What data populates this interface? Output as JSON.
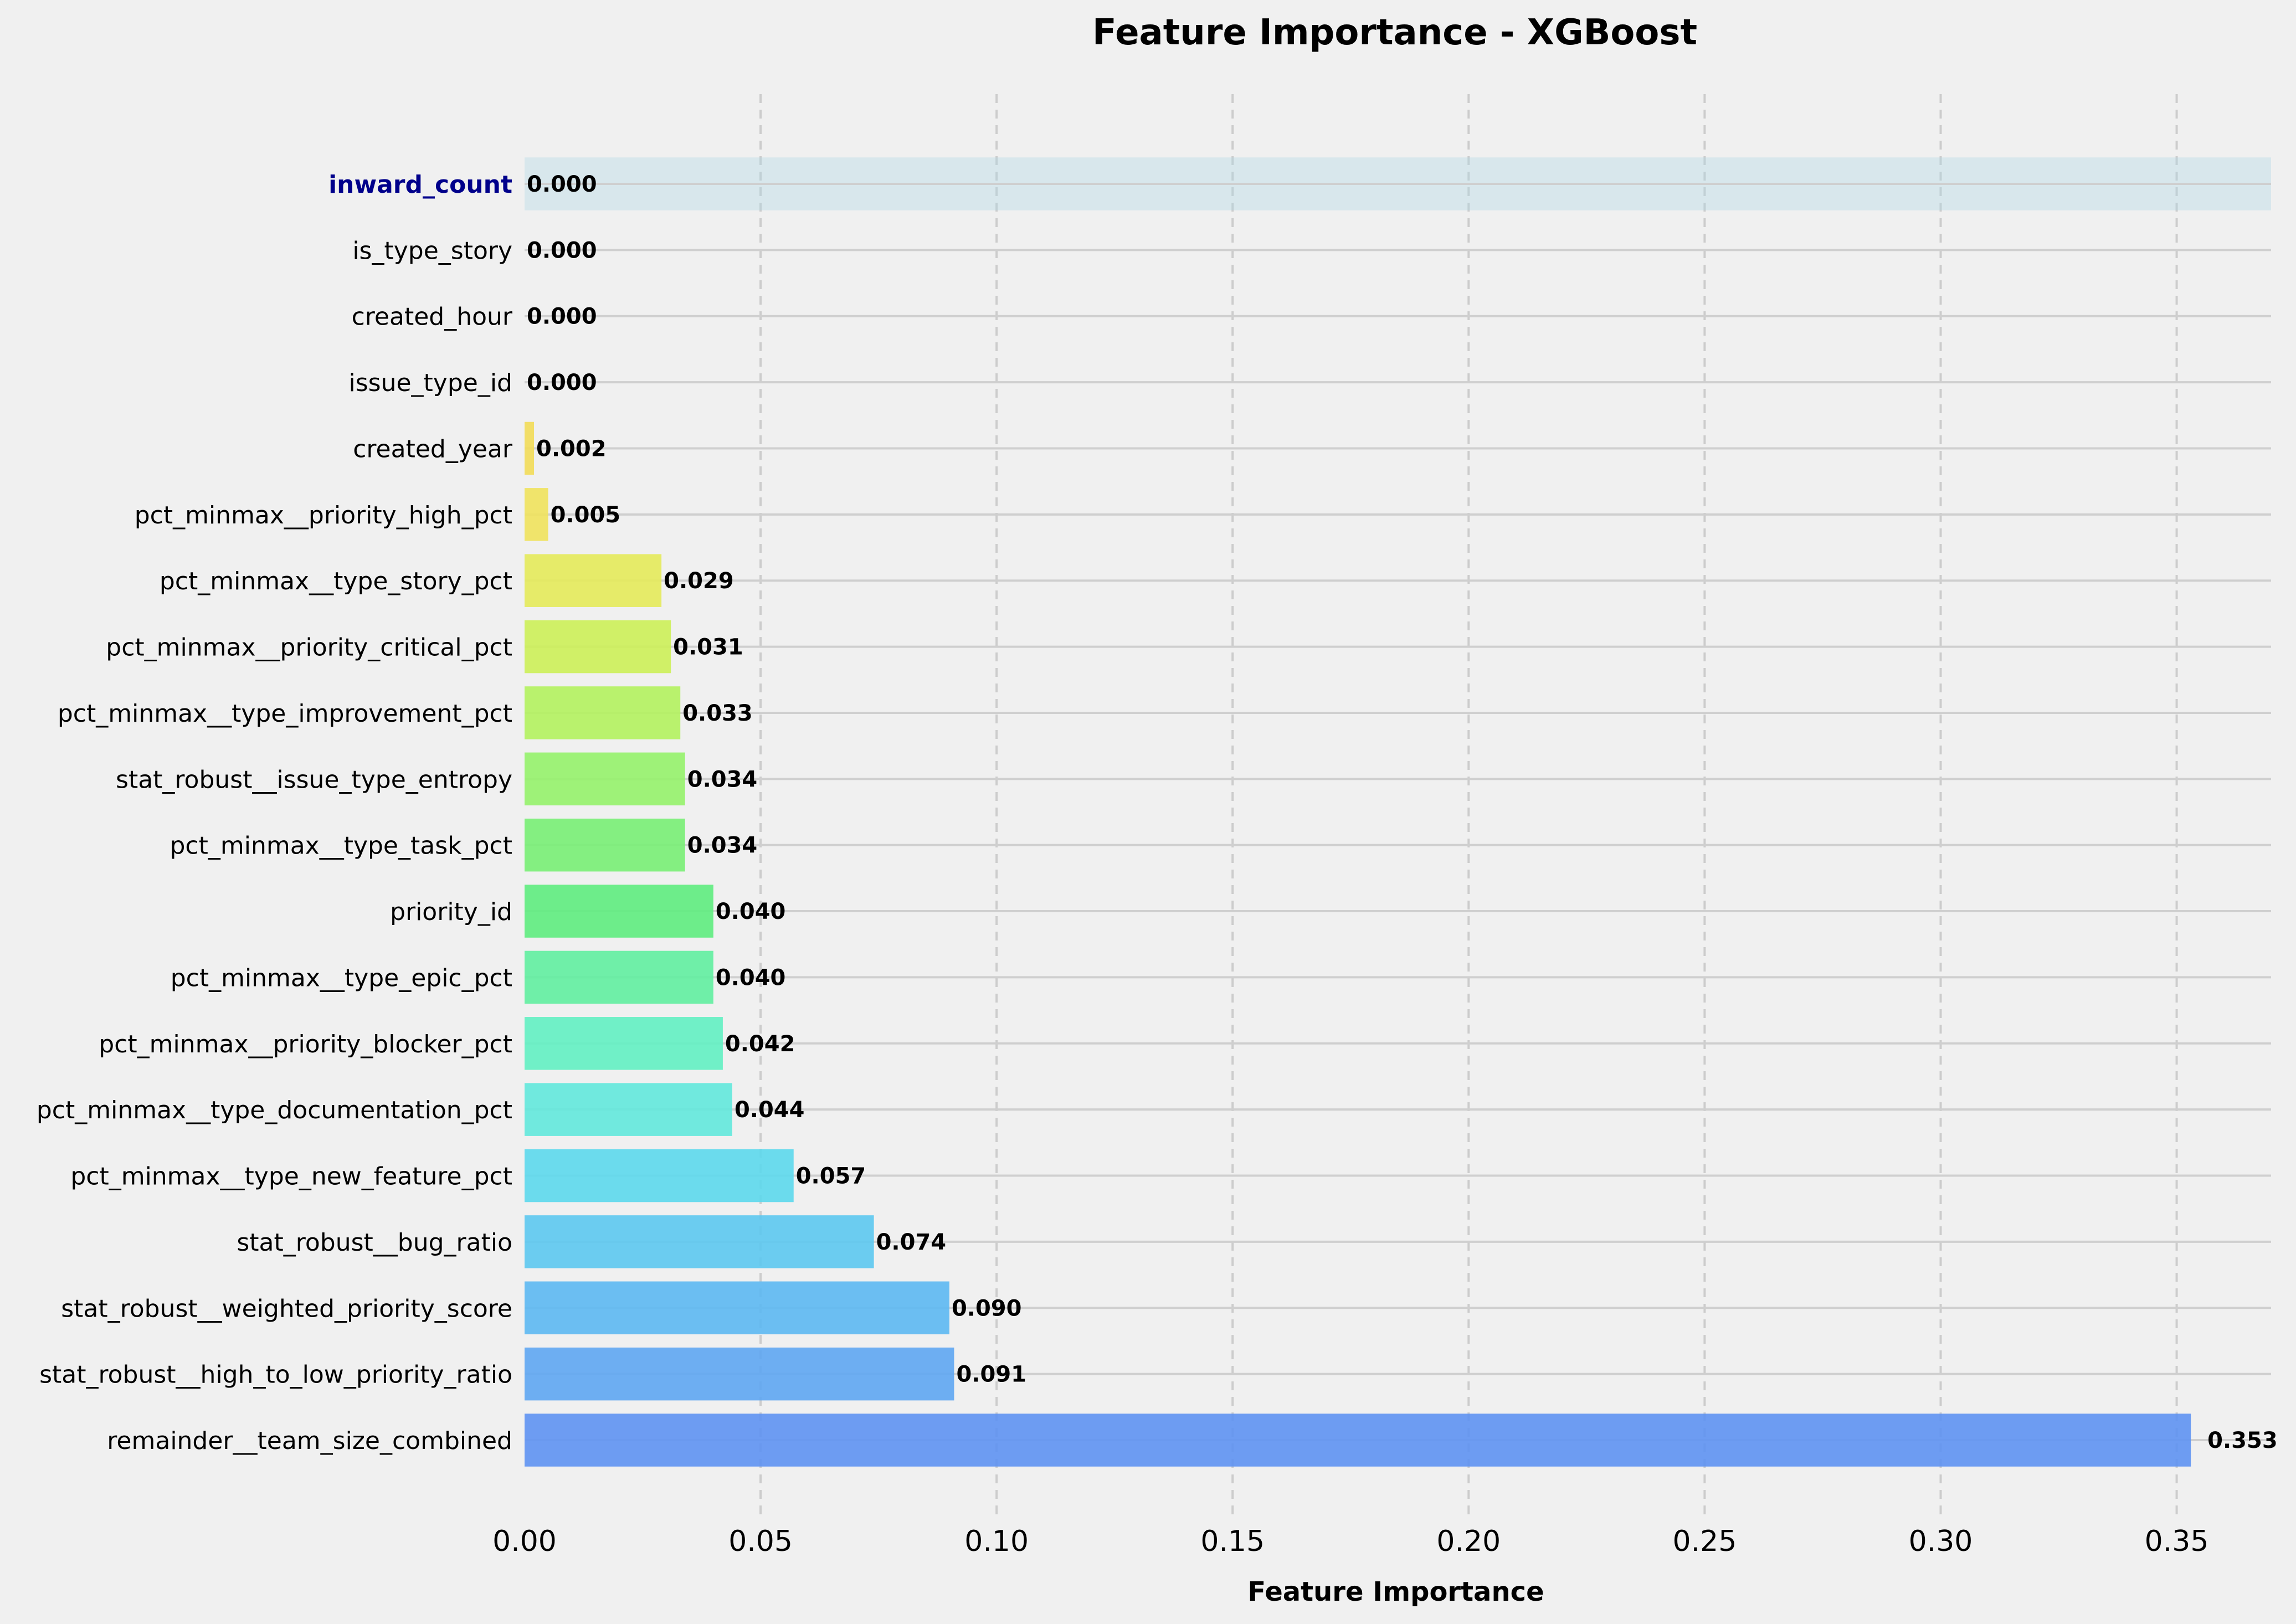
{
  "chart_data": {
    "type": "bar",
    "orientation": "horizontal",
    "title": "Feature Importance - XGBoost",
    "xlabel": "Feature Importance",
    "ylabel": "",
    "xlim": [
      0,
      0.37
    ],
    "xticks": [
      "0.00",
      "0.05",
      "0.10",
      "0.15",
      "0.20",
      "0.25",
      "0.30",
      "0.35"
    ],
    "xtick_values": [
      0,
      0.05,
      0.1,
      0.15,
      0.2,
      0.25,
      0.3,
      0.35
    ],
    "grid": "x dashed",
    "highlighted_feature": "inward_count",
    "categories": [
      "inward_count",
      "is_type_story",
      "created_hour",
      "issue_type_id",
      "created_year",
      "pct_minmax__priority_high_pct",
      "pct_minmax__type_story_pct",
      "pct_minmax__priority_critical_pct",
      "pct_minmax__type_improvement_pct",
      "stat_robust__issue_type_entropy",
      "pct_minmax__type_task_pct",
      "priority_id",
      "pct_minmax__type_epic_pct",
      "pct_minmax__priority_blocker_pct",
      "pct_minmax__type_documentation_pct",
      "pct_minmax__type_new_feature_pct",
      "stat_robust__bug_ratio",
      "stat_robust__weighted_priority_score",
      "stat_robust__high_to_low_priority_ratio",
      "remainder__team_size_combined"
    ],
    "values": [
      0.0,
      0.0,
      0.0,
      0.0,
      0.002,
      0.005,
      0.029,
      0.031,
      0.033,
      0.034,
      0.034,
      0.04,
      0.04,
      0.042,
      0.044,
      0.057,
      0.074,
      0.09,
      0.091,
      0.353
    ],
    "value_labels": [
      "0.000",
      "0.000",
      "0.000",
      "0.000",
      "0.002",
      "0.005",
      "0.029",
      "0.031",
      "0.033",
      "0.034",
      "0.034",
      "0.040",
      "0.040",
      "0.042",
      "0.044",
      "0.057",
      "0.074",
      "0.090",
      "0.091",
      "0.353"
    ],
    "colors": [
      "#f2c94c",
      "#f2d35a",
      "#f2dc60",
      "#f0e05a",
      "#f2db58",
      "#efe25c",
      "#e4ea5a",
      "#ccef58",
      "#b2f25e",
      "#95f26a",
      "#78ee74",
      "#5eec7e",
      "#60eea0",
      "#62f0c2",
      "#62e8dc",
      "#5cd8ec",
      "#5cc8f0",
      "#5cb8f2",
      "#5ea6f2",
      "#5e92f2"
    ],
    "highlight_color": "#add8e6",
    "background": "#f0f0f0"
  }
}
